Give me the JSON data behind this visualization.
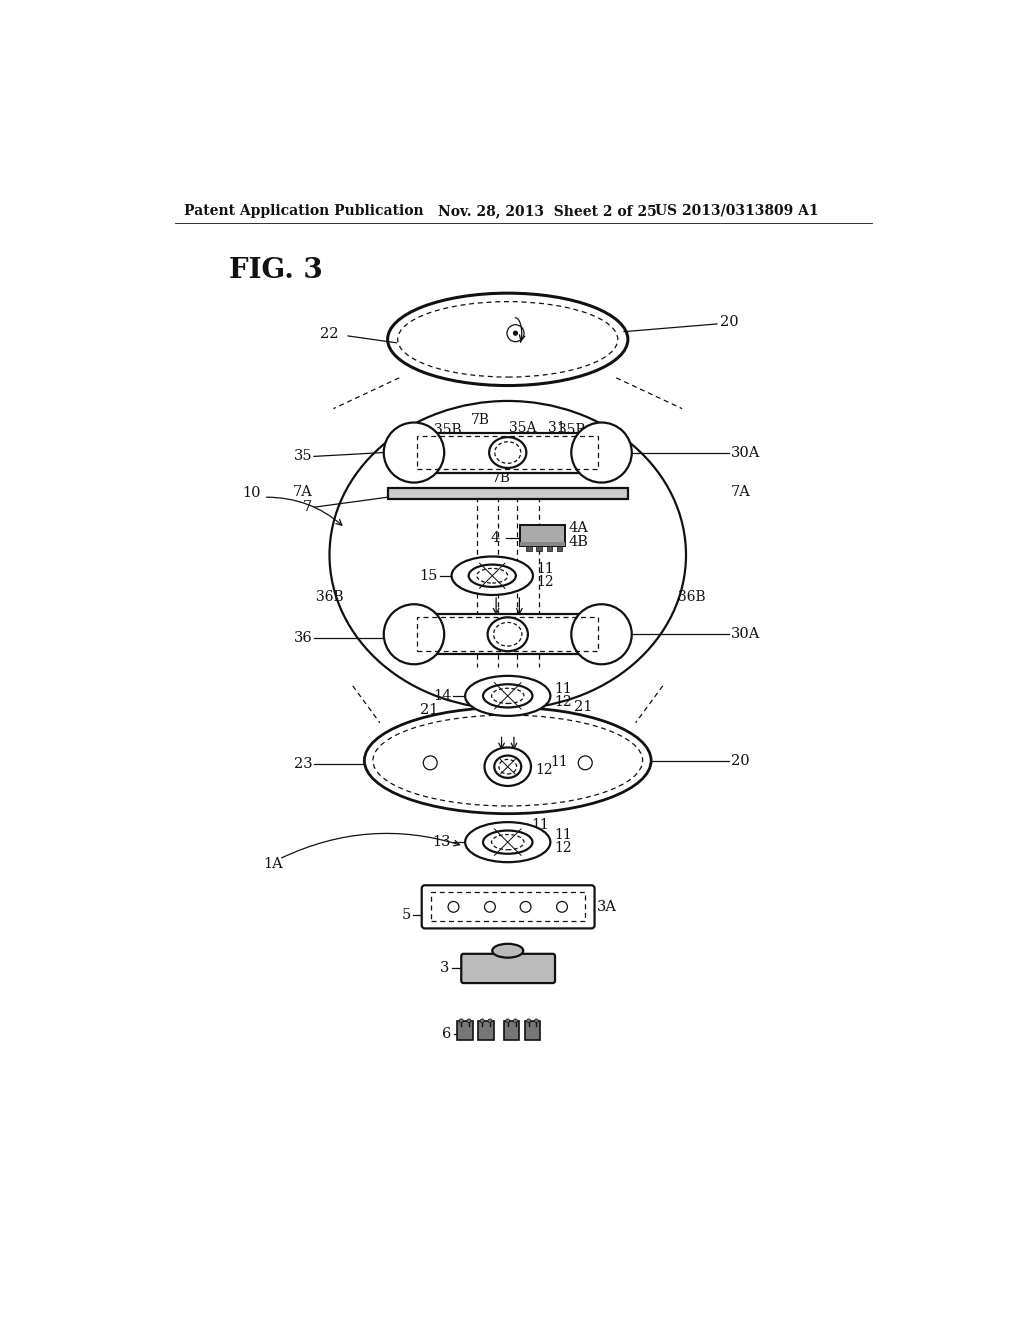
{
  "background_color": "#ffffff",
  "header_left": "Patent Application Publication",
  "header_mid": "Nov. 28, 2013  Sheet 2 of 25",
  "header_right": "US 2013/0313809 A1",
  "fig_label": "FIG. 3",
  "line_color": "#111111",
  "line_width": 1.6,
  "thin_line": 0.9,
  "label_fontsize": 10.5,
  "header_fontsize": 10
}
